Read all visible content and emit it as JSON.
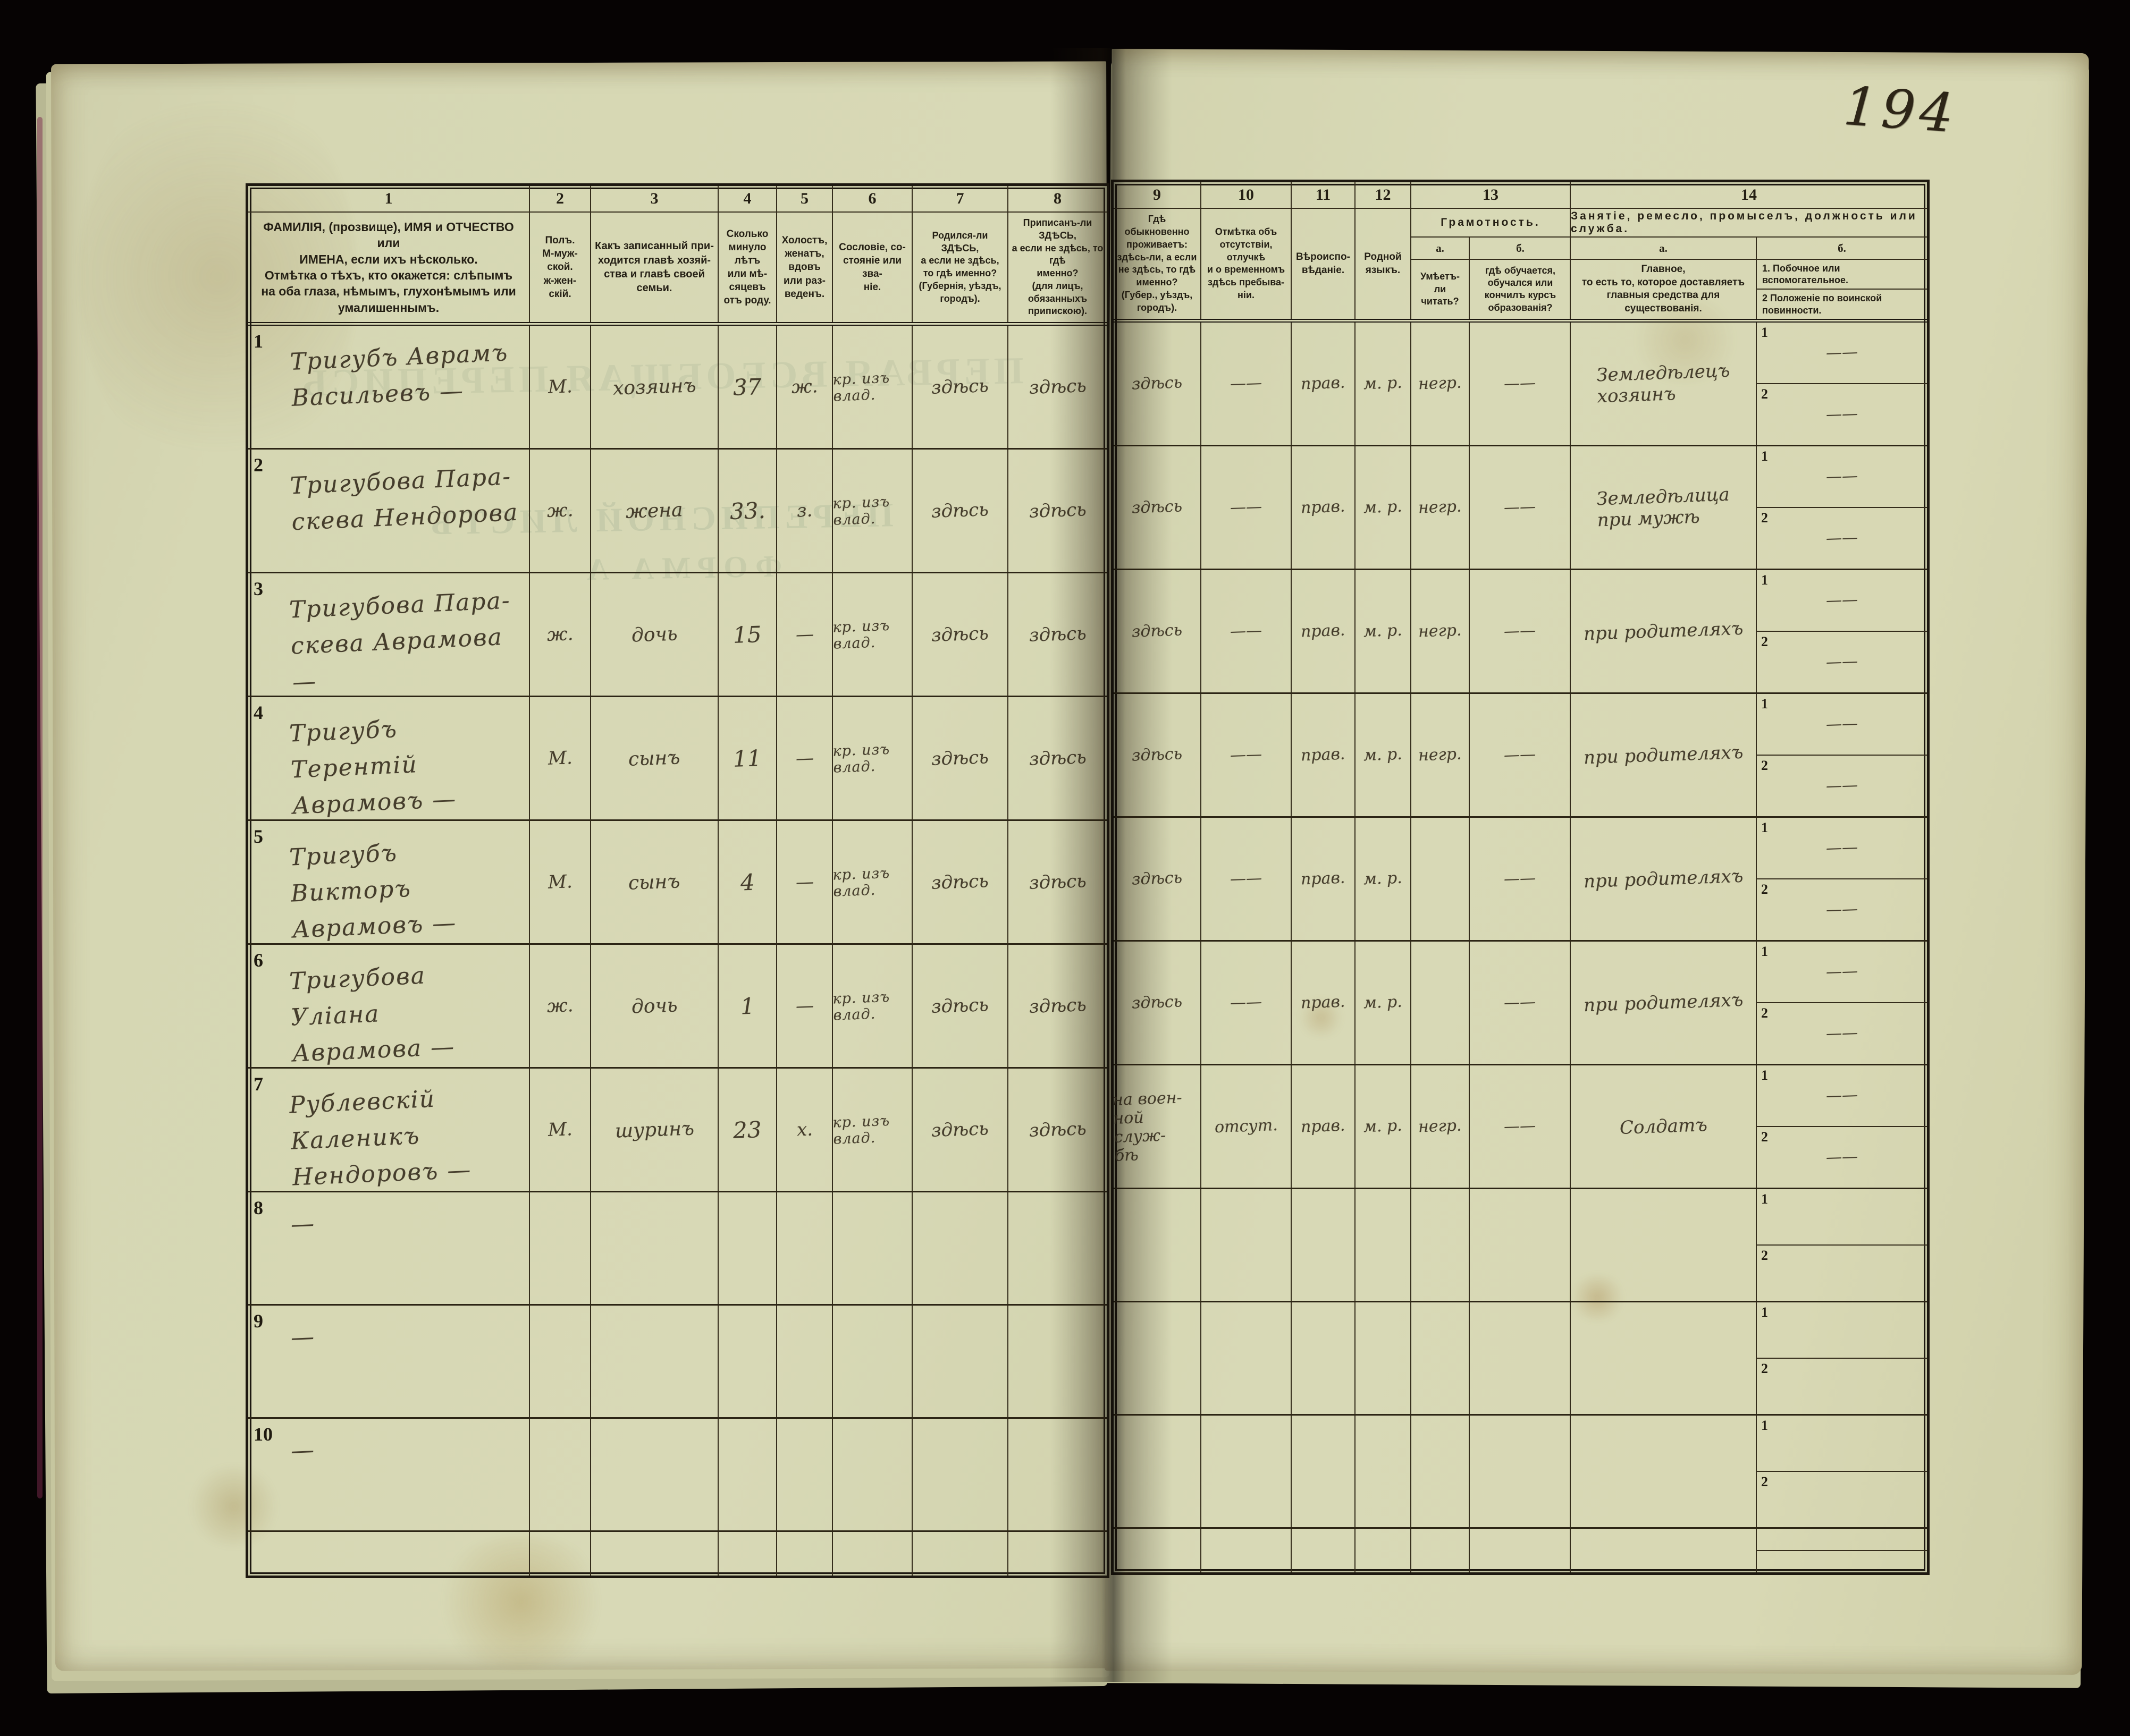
{
  "page_number": "194",
  "ghost_bleed": {
    "census_title": "ПЕРВАЯ ВСЕОБЩАЯ ПЕРЕПИСЬ",
    "list_title": "ПЕРЕПИСНОЙ ЛИСТЪ",
    "form_title": "ФОРМА А"
  },
  "table": {
    "column_numbers": [
      "1",
      "2",
      "3",
      "4",
      "5",
      "6",
      "7",
      "8",
      "9",
      "10",
      "11",
      "12",
      "13",
      "14"
    ],
    "headers": {
      "c1": "ФАМИЛІЯ, (прозвище), ИМЯ и ОТЧЕСТВО или\nИМЕНА, если ихъ нѣсколько.\nОтмѣтка о тѣхъ, кто окажется: слѣпымъ\nна оба глаза, нѣмымъ, глухонѣмымъ или\nумалишеннымъ.",
      "c2": "Полъ.\nМ-муж-\nской.\nж-жен-\nскій.",
      "c3": "Какъ записанный при-\nходится главѣ хозяй-\nства и главѣ своей\nсемьи.",
      "c4": "Сколько\nминуло\nлѣтъ\nили мѣ-\nсяцевъ\nотъ роду.",
      "c5": "Холостъ,\nженатъ,\nвдовъ\nили раз-\nведенъ.",
      "c6": "Сословіе, со-\nстояніе или зва-\nніе.",
      "c7": "Родился-ли ЗДѢСЬ,\nа если не здѣсь,\nто гдѣ именно?\n(Губернія, уѣздъ, городъ).",
      "c8": "Приписанъ-ли ЗДѢСЬ,\nа если не здѣсь, то гдѣ\nименно?\n(для лицъ, обязанныхъ\nприпискою).",
      "c9": "Гдѣ обыкновенно\nпроживаетъ:\nздѣсь-ли, а если\nне здѣсь, то гдѣ\nименно?\n(Губер., уѣздъ, городъ).",
      "c10": "Отмѣтка объ\nотсутствіи, отлучкѣ\nи о временномъ\nздѣсь пребыва-\nніи.",
      "c11": "Вѣроиспо-\nвѣданіе.",
      "c12": "Родной\nязыкъ.",
      "c13_group": "Грамотность.",
      "c13a_label": "а.",
      "c13a": "Умѣетъ-\nли\nчитать?",
      "c13b_label": "б.",
      "c13b": "гдѣ обучается,\nобучался или\nкончилъ курсъ\nобразованія?",
      "c14_group": "Занятіе, ремесло, промыселъ, должность или служба.",
      "c14a_label": "а.",
      "c14a": "Главное,\nто есть то, которое доставляетъ\nглавныя средства для существованія.",
      "c14b_label": "б.",
      "c14b_1": "1.  Побочное или вспомогательное.",
      "c14b_2": "2  Положеніе по воинской повинности."
    },
    "side_labels": [
      "1",
      "2"
    ],
    "left_keys": [
      "name",
      "sex",
      "relation",
      "age",
      "marital",
      "estate",
      "born",
      "registered"
    ],
    "right_keys": [
      "residence",
      "absence",
      "religion",
      "language",
      "literacy",
      "education",
      "occupation"
    ],
    "rows": [
      {
        "num": "1",
        "name": "Тригубъ Аврамъ\nВасильевъ —",
        "sex": "М.",
        "relation": "хозяинъ",
        "age": "37",
        "marital": "ж.",
        "estate": "кр. изъ влад.",
        "born": "здѣсь",
        "registered": "здѣсь",
        "residence": "здѣсь",
        "absence": "——",
        "religion": "прав.",
        "language": "м. р.",
        "literacy": "негр.",
        "education": "——",
        "occupation": "Земледѣлецъ\nхозяинъ",
        "side1": "——",
        "side2": "——"
      },
      {
        "num": "2",
        "name": "Тригубова Пара-\nскева Нендорова",
        "sex": "ж.",
        "relation": "жена",
        "age": "33.",
        "marital": "з.",
        "estate": "кр. изъ влад.",
        "born": "здѣсь",
        "registered": "здѣсь",
        "residence": "здѣсь",
        "absence": "——",
        "religion": "прав.",
        "language": "м. р.",
        "literacy": "негр.",
        "education": "——",
        "occupation": "Земледѣлица\nпри мужѣ",
        "side1": "——",
        "side2": "——"
      },
      {
        "num": "3",
        "name": "Тригубова Пара-\nскева Аврамова —",
        "sex": "ж.",
        "relation": "дочь",
        "age": "15",
        "marital": "—",
        "estate": "кр. изъ влад.",
        "born": "здѣсь",
        "registered": "здѣсь",
        "residence": "здѣсь",
        "absence": "——",
        "religion": "прав.",
        "language": "м. р.",
        "literacy": "негр.",
        "education": "——",
        "occupation": "при родителяхъ",
        "side1": "——",
        "side2": "——"
      },
      {
        "num": "4",
        "name": "Тригубъ Терентій\nАврамовъ —",
        "sex": "М.",
        "relation": "сынъ",
        "age": "11",
        "marital": "—",
        "estate": "кр. изъ влад.",
        "born": "здѣсь",
        "registered": "здѣсь",
        "residence": "здѣсь",
        "absence": "——",
        "religion": "прав.",
        "language": "м. р.",
        "literacy": "негр.",
        "education": "——",
        "occupation": "при родителяхъ",
        "side1": "——",
        "side2": "——"
      },
      {
        "num": "5",
        "name": "Тригубъ Викторъ\nАврамовъ —",
        "sex": "М.",
        "relation": "сынъ",
        "age": "4",
        "marital": "—",
        "estate": "кр. изъ влад.",
        "born": "здѣсь",
        "registered": "здѣсь",
        "residence": "здѣсь",
        "absence": "——",
        "religion": "прав.",
        "language": "м. р.",
        "literacy": "",
        "education": "——",
        "occupation": "при родителяхъ",
        "side1": "——",
        "side2": "——"
      },
      {
        "num": "6",
        "name": "Тригубова Уліана\nАврамова —",
        "sex": "ж.",
        "relation": "дочь",
        "age": "1",
        "marital": "—",
        "estate": "кр. изъ влад.",
        "born": "здѣсь",
        "registered": "здѣсь",
        "residence": "здѣсь",
        "absence": "——",
        "religion": "прав.",
        "language": "м. р.",
        "literacy": "",
        "education": "——",
        "occupation": "при родителяхъ",
        "side1": "——",
        "side2": "——"
      },
      {
        "num": "7",
        "name": "Рублевскій Каленикъ\nНендоровъ —",
        "sex": "М.",
        "relation": "шуринъ",
        "age": "23",
        "marital": "х.",
        "estate": "кр. изъ влад.",
        "born": "здѣсь",
        "registered": "здѣсь",
        "residence": "на воен-\nной служ-\nбѣ",
        "absence": "отсут.",
        "religion": "прав.",
        "language": "м. р.",
        "literacy": "негр.",
        "education": "——",
        "occupation": "Солдатъ",
        "side1": "——",
        "side2": "——"
      },
      {
        "num": "8",
        "name": "—",
        "empty": true,
        "sex": "",
        "relation": "",
        "age": "",
        "marital": "",
        "estate": "",
        "born": "",
        "registered": "",
        "residence": "",
        "absence": "",
        "religion": "",
        "language": "",
        "literacy": "",
        "education": "",
        "occupation": "",
        "side1": "",
        "side2": ""
      },
      {
        "num": "9",
        "name": "—",
        "empty": true,
        "sex": "",
        "relation": "",
        "age": "",
        "marital": "",
        "estate": "",
        "born": "",
        "registered": "",
        "residence": "",
        "absence": "",
        "religion": "",
        "language": "",
        "literacy": "",
        "education": "",
        "occupation": "",
        "side1": "",
        "side2": ""
      },
      {
        "num": "10",
        "name": "—",
        "empty": true,
        "sex": "",
        "relation": "",
        "age": "",
        "marital": "",
        "estate": "",
        "born": "",
        "registered": "",
        "residence": "",
        "absence": "",
        "religion": "",
        "language": "",
        "literacy": "",
        "education": "",
        "occupation": "",
        "side1": "",
        "side2": ""
      },
      {
        "num": "",
        "name": "",
        "empty": true,
        "partial": true,
        "sex": "",
        "relation": "",
        "age": "",
        "marital": "",
        "estate": "",
        "born": "",
        "registered": "",
        "residence": "",
        "absence": "",
        "religion": "",
        "language": "",
        "literacy": "",
        "education": "",
        "occupation": "",
        "side1": "",
        "side2": ""
      }
    ]
  }
}
